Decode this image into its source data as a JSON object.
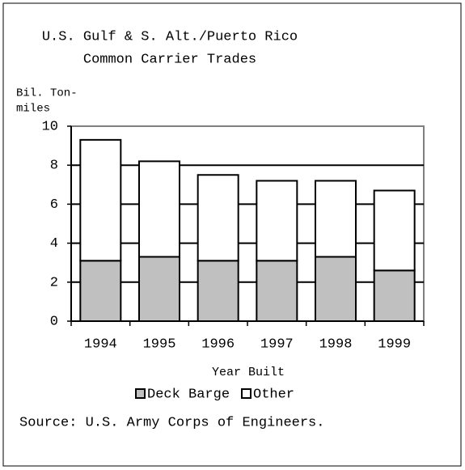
{
  "chart_data": {
    "type": "stacked-bar",
    "title": [
      "U.S. Gulf & S. Alt./Puerto Rico",
      "Common Carrier Trades"
    ],
    "ylabel": [
      "Bil. Ton-",
      "miles"
    ],
    "xlabel": "Year Built",
    "source": "Source: U.S. Army Corps of Engineers.",
    "categories": [
      "1994",
      "1995",
      "1996",
      "1997",
      "1998",
      "1999"
    ],
    "series": [
      {
        "name": "Deck Barge",
        "color": "#c0c0c0",
        "values": [
          3.1,
          3.3,
          3.1,
          3.1,
          3.3,
          2.6
        ]
      },
      {
        "name": "Other",
        "color": "#ffffff",
        "values": [
          6.2,
          4.9,
          4.4,
          4.1,
          3.9,
          4.1
        ]
      }
    ],
    "ylim": [
      0,
      10
    ],
    "yticks": [
      0,
      2,
      4,
      6,
      8,
      10
    ],
    "grid": true,
    "legend": "bottom"
  }
}
